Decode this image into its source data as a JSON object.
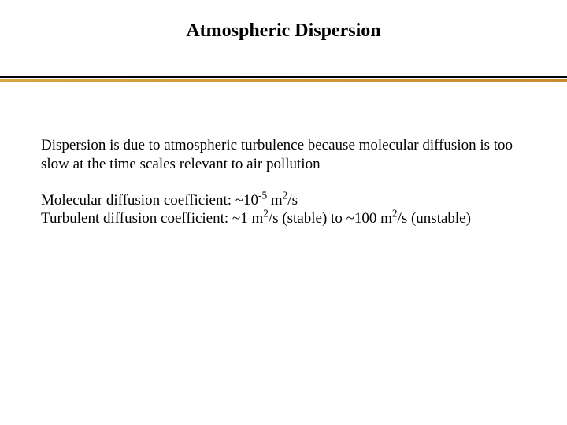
{
  "title": "Atmospheric Dispersion",
  "divider": {
    "line_top_color": "#000000",
    "line_orange_color_start": "#d9a441",
    "line_orange_color_end": "#c98b2e"
  },
  "content": {
    "para1": "Dispersion is due to atmospheric turbulence because molecular diffusion is too slow at the time scales relevant to air pollution",
    "mol_label": "Molecular diffusion coefficient: ~10",
    "mol_exp": "-5",
    "mol_unit_pre": " m",
    "mol_unit_exp": "2",
    "mol_unit_post": "/s",
    "turb_label": "Turbulent diffusion coefficient: ~1 m",
    "turb_exp1": "2",
    "turb_mid": "/s (stable) to ~100 m",
    "turb_exp2": "2",
    "turb_post": "/s (unstable)"
  },
  "style": {
    "background_color": "#ffffff",
    "text_color": "#000000",
    "title_fontsize": 24,
    "body_fontsize": 19,
    "font_family": "Times New Roman"
  }
}
